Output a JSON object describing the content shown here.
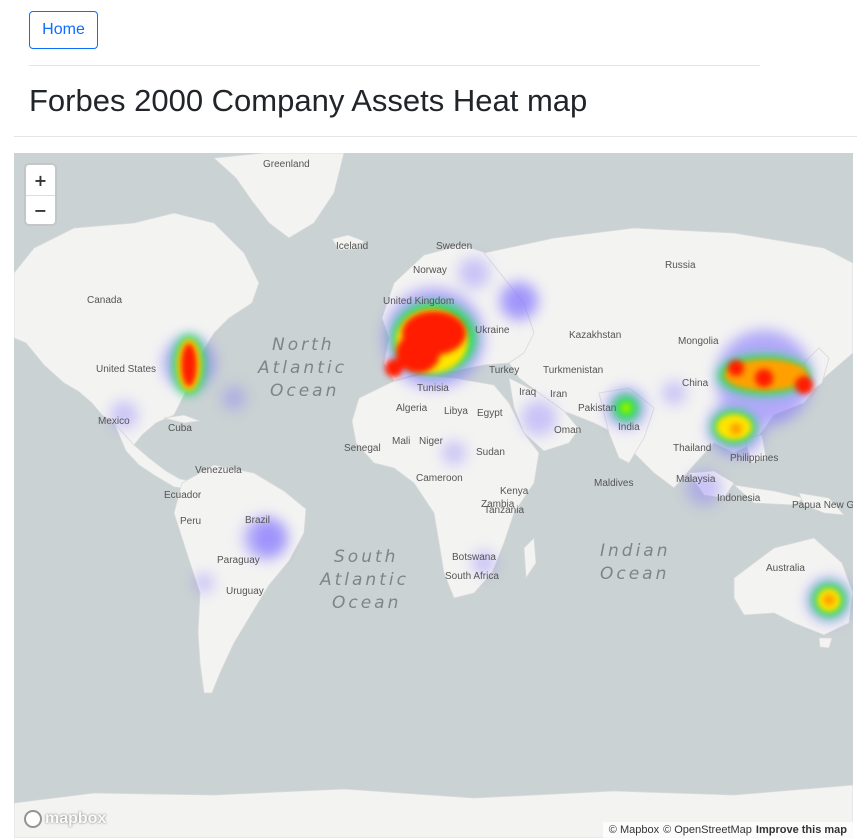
{
  "nav": {
    "home_label": "Home"
  },
  "page": {
    "title": "Forbes 2000 Company Assets Heat map"
  },
  "map": {
    "zoom_in_label": "+",
    "zoom_out_label": "−",
    "logo_text": "mapbox",
    "attribution": {
      "mapbox": "© Mapbox",
      "osm": "© OpenStreetMap",
      "improve": "Improve this map"
    },
    "country_labels": [
      "Greenland",
      "Iceland",
      "Sweden",
      "Norway",
      "Russia",
      "Canada",
      "United Kingdom",
      "Ukraine",
      "Kazakhstan",
      "Mongolia",
      "United States",
      "Turkey",
      "Turkmenistan",
      "China",
      "Tunisia",
      "Iraq",
      "Iran",
      "Pakistan",
      "Mexico",
      "Cuba",
      "Algeria",
      "Libya",
      "Egypt",
      "Oman",
      "India",
      "Thailand",
      "Philippines",
      "Senegal",
      "Mali",
      "Niger",
      "Sudan",
      "Venezuela",
      "Cameroon",
      "Maldives",
      "Malaysia",
      "Ecuador",
      "Kenya",
      "Peru",
      "Brazil",
      "Tanzania",
      "Indonesia",
      "Papua New Guinea",
      "Zambia",
      "Paraguay",
      "Botswana",
      "Australia",
      "Uruguay",
      "South Africa"
    ],
    "ocean_labels": [
      [
        "North",
        "Atlantic",
        "Ocean"
      ],
      [
        "South",
        "Atlantic",
        "Ocean"
      ],
      [
        "Indian",
        "Ocean"
      ]
    ],
    "colors": {
      "water": "#cad2d3",
      "land": "#f3f3f2",
      "heat_low": "#7b6cff",
      "heat_mid": "#23e05a",
      "heat_high": "#ff1a00"
    }
  }
}
